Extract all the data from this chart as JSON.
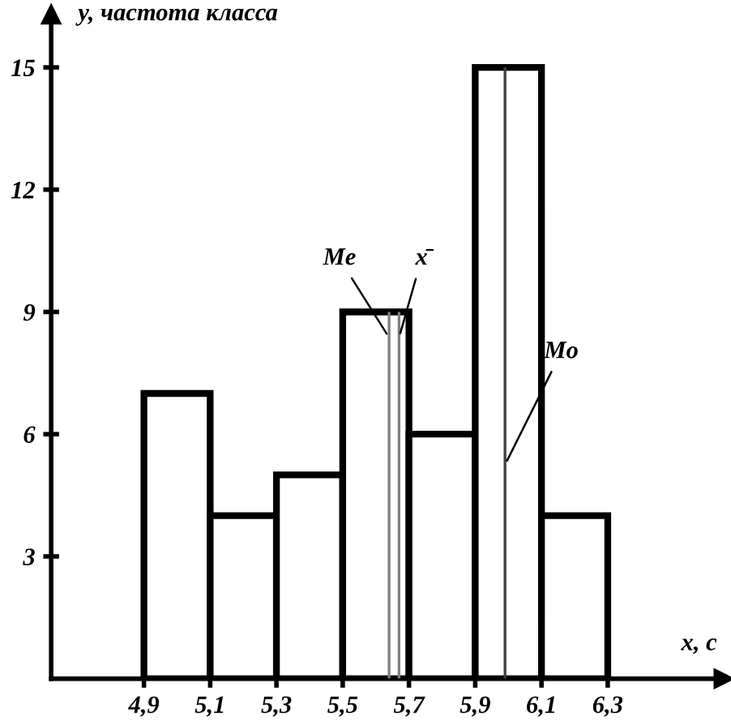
{
  "chart_data": {
    "type": "histogram",
    "xlabel": "x, с",
    "ylabel": "y, частота класса",
    "bins": [
      4.9,
      5.1,
      5.3,
      5.5,
      5.7,
      5.9,
      6.1,
      6.3
    ],
    "values": [
      7,
      4,
      5,
      9,
      6,
      15,
      4
    ],
    "color": "#ffffff",
    "xlim": [
      4.62,
      6.65
    ],
    "ylim": [
      0,
      16.3
    ],
    "xticks": [
      {
        "value": 4.9,
        "label": "4,9"
      },
      {
        "value": 5.1,
        "label": "5,1"
      },
      {
        "value": 5.3,
        "label": "5,3"
      },
      {
        "value": 5.5,
        "label": "5,5"
      },
      {
        "value": 5.7,
        "label": "5,7"
      },
      {
        "value": 5.9,
        "label": "5,9"
      },
      {
        "value": 6.1,
        "label": "6,1"
      },
      {
        "value": 6.3,
        "label": "6,3"
      }
    ],
    "yticks": [
      3,
      6,
      9,
      12,
      15
    ],
    "ref_lines": [
      {
        "axis": "x",
        "value": 5.64,
        "label": "Me",
        "color": "#808080"
      },
      {
        "axis": "x",
        "value": 5.67,
        "label": "x̄",
        "color": "#808080"
      },
      {
        "axis": "x",
        "value": 5.99,
        "label": "Mo",
        "color": "#404040"
      }
    ],
    "grid": false,
    "legend": false
  }
}
